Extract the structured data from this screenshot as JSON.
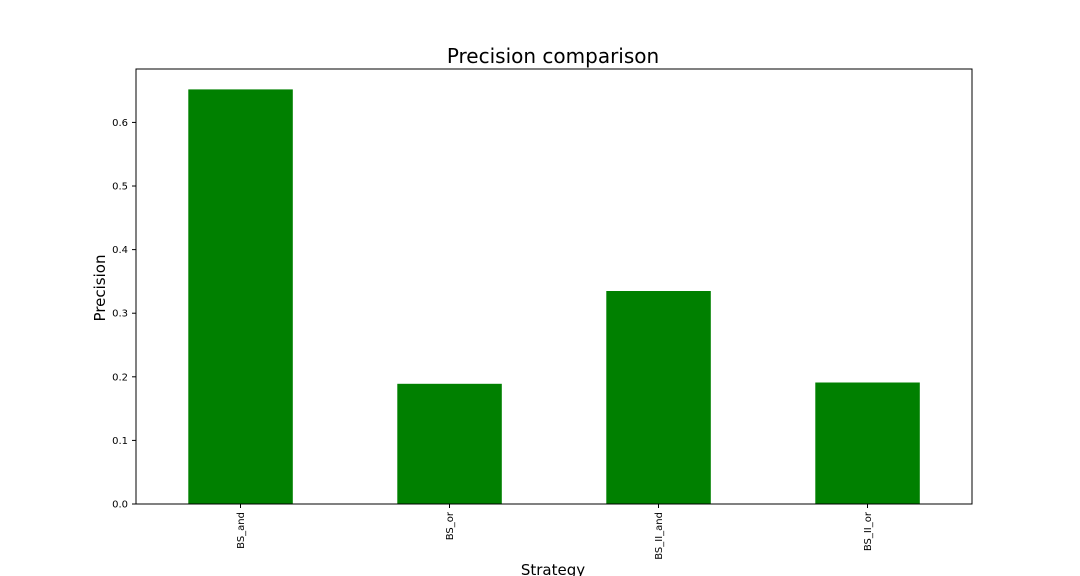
{
  "chart_data": {
    "type": "bar",
    "title": "Precision comparison",
    "xlabel": "Strategy",
    "ylabel": "Precision",
    "categories": [
      "BS_and",
      "BS_or",
      "BS_II_and",
      "BS_II_or"
    ],
    "values": [
      0.652,
      0.189,
      0.335,
      0.191
    ],
    "ylim": [
      0,
      0.684
    ],
    "yticks": [
      "0.0",
      "0.1",
      "0.2",
      "0.3",
      "0.4",
      "0.5",
      "0.6"
    ],
    "grid": false,
    "legend": "none",
    "colors": {
      "bar": "#008000",
      "axes": "#000000",
      "background": "#ffffff"
    }
  }
}
